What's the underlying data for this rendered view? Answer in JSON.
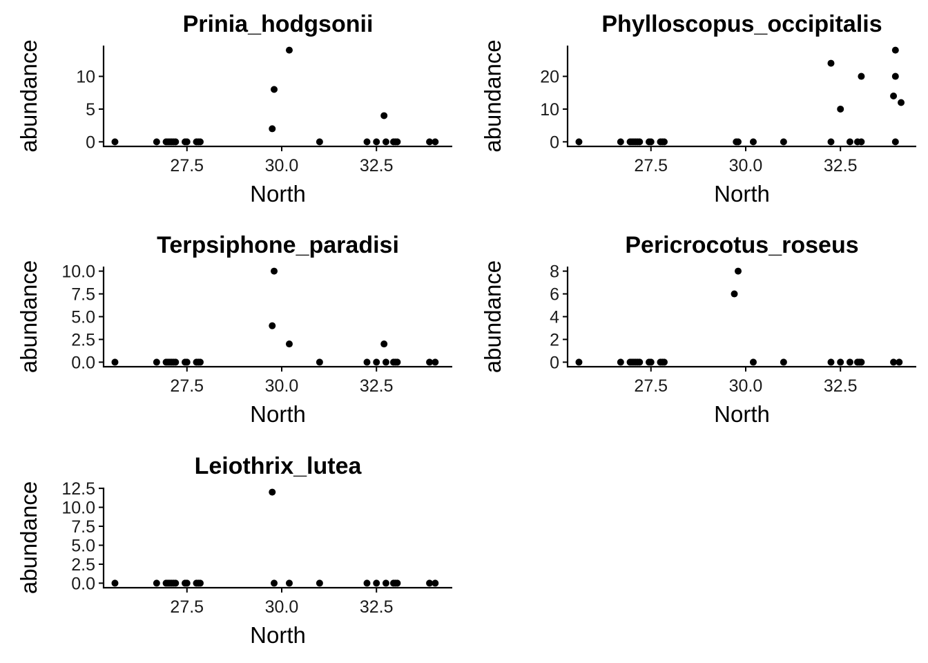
{
  "chart_data": [
    {
      "type": "scatter",
      "title": "Prinia_hodgsonii",
      "xlabel": "North",
      "ylabel": "abundance",
      "xlim": [
        25.3,
        34.5
      ],
      "ylim": [
        -0.7,
        14.7
      ],
      "xticks": [
        "27.5",
        "30.0",
        "32.5"
      ],
      "yticks": [
        "0",
        "5",
        "10"
      ],
      "x": [
        25.6,
        26.7,
        26.95,
        27.0,
        27.05,
        27.1,
        27.15,
        27.2,
        27.45,
        27.5,
        27.75,
        27.8,
        27.85,
        29.75,
        29.8,
        30.2,
        31.0,
        32.25,
        32.5,
        32.7,
        32.75,
        32.95,
        33.0,
        33.05,
        33.9,
        34.05
      ],
      "y": [
        0,
        0,
        0,
        0,
        0,
        0,
        0,
        0,
        0,
        0,
        0,
        0,
        0,
        2,
        8,
        14,
        0,
        0,
        0,
        4,
        0,
        0,
        0,
        0,
        0,
        0
      ]
    },
    {
      "type": "scatter",
      "title": "Phylloscopus_occipitalis",
      "xlabel": "North",
      "ylabel": "abundance",
      "xlim": [
        25.3,
        34.5
      ],
      "ylim": [
        -1.4,
        29.4
      ],
      "xticks": [
        "27.5",
        "30.0",
        "32.5"
      ],
      "yticks": [
        "0",
        "10",
        "20"
      ],
      "x": [
        25.6,
        26.7,
        26.95,
        27.0,
        27.05,
        27.1,
        27.15,
        27.2,
        27.45,
        27.5,
        27.75,
        27.8,
        27.85,
        29.75,
        29.8,
        30.2,
        31.0,
        32.25,
        32.25,
        32.5,
        32.75,
        32.95,
        33.05,
        33.05,
        33.9,
        33.95,
        33.95,
        33.95,
        34.1
      ],
      "y": [
        0,
        0,
        0,
        0,
        0,
        0,
        0,
        0,
        0,
        0,
        0,
        0,
        0,
        0,
        0,
        0,
        0,
        0,
        24,
        10,
        0,
        0,
        0,
        20,
        14,
        28,
        20,
        0,
        12
      ]
    },
    {
      "type": "scatter",
      "title": "Terpsiphone_paradisi",
      "xlabel": "North",
      "ylabel": "abundance",
      "xlim": [
        25.3,
        34.5
      ],
      "ylim": [
        -0.5,
        10.5
      ],
      "xticks": [
        "27.5",
        "30.0",
        "32.5"
      ],
      "yticks": [
        "0.0",
        "2.5",
        "5.0",
        "7.5",
        "10.0"
      ],
      "x": [
        25.6,
        26.7,
        26.95,
        27.0,
        27.05,
        27.1,
        27.15,
        27.2,
        27.45,
        27.5,
        27.75,
        27.8,
        27.85,
        29.75,
        29.8,
        30.2,
        31.0,
        32.25,
        32.5,
        32.7,
        32.75,
        32.95,
        33.0,
        33.05,
        33.9,
        34.05
      ],
      "y": [
        0,
        0,
        0,
        0,
        0,
        0,
        0,
        0,
        0,
        0,
        0,
        0,
        0,
        4,
        10,
        2,
        0,
        0,
        0,
        2,
        0,
        0,
        0,
        0,
        0,
        0
      ]
    },
    {
      "type": "scatter",
      "title": "Pericrocotus_roseus",
      "xlabel": "North",
      "ylabel": "abundance",
      "xlim": [
        25.3,
        34.5
      ],
      "ylim": [
        -0.4,
        8.4
      ],
      "xticks": [
        "27.5",
        "30.0",
        "32.5"
      ],
      "yticks": [
        "0",
        "2",
        "4",
        "6",
        "8"
      ],
      "x": [
        25.6,
        26.7,
        26.95,
        27.0,
        27.05,
        27.1,
        27.15,
        27.2,
        27.45,
        27.5,
        27.75,
        27.8,
        27.85,
        29.7,
        29.8,
        30.2,
        31.0,
        32.25,
        32.5,
        32.75,
        32.95,
        33.0,
        33.05,
        33.9,
        34.05
      ],
      "y": [
        0,
        0,
        0,
        0,
        0,
        0,
        0,
        0,
        0,
        0,
        0,
        0,
        0,
        6,
        8,
        0,
        0,
        0,
        0,
        0,
        0,
        0,
        0,
        0,
        0
      ]
    },
    {
      "type": "scatter",
      "title": "Leiothrix_lutea",
      "xlabel": "North",
      "ylabel": "abundance",
      "xlim": [
        25.3,
        34.5
      ],
      "ylim": [
        -0.6,
        12.6
      ],
      "xticks": [
        "27.5",
        "30.0",
        "32.5"
      ],
      "yticks": [
        "0.0",
        "2.5",
        "5.0",
        "7.5",
        "10.0",
        "12.5"
      ],
      "x": [
        25.6,
        26.7,
        26.95,
        27.0,
        27.05,
        27.1,
        27.15,
        27.2,
        27.45,
        27.5,
        27.75,
        27.8,
        27.85,
        29.75,
        29.8,
        30.2,
        31.0,
        32.25,
        32.5,
        32.75,
        32.95,
        33.0,
        33.05,
        33.9,
        34.05
      ],
      "y": [
        0,
        0,
        0,
        0,
        0,
        0,
        0,
        0,
        0,
        0,
        0,
        0,
        0,
        12,
        0,
        0,
        0,
        0,
        0,
        0,
        0,
        0,
        0,
        0,
        0
      ]
    }
  ]
}
